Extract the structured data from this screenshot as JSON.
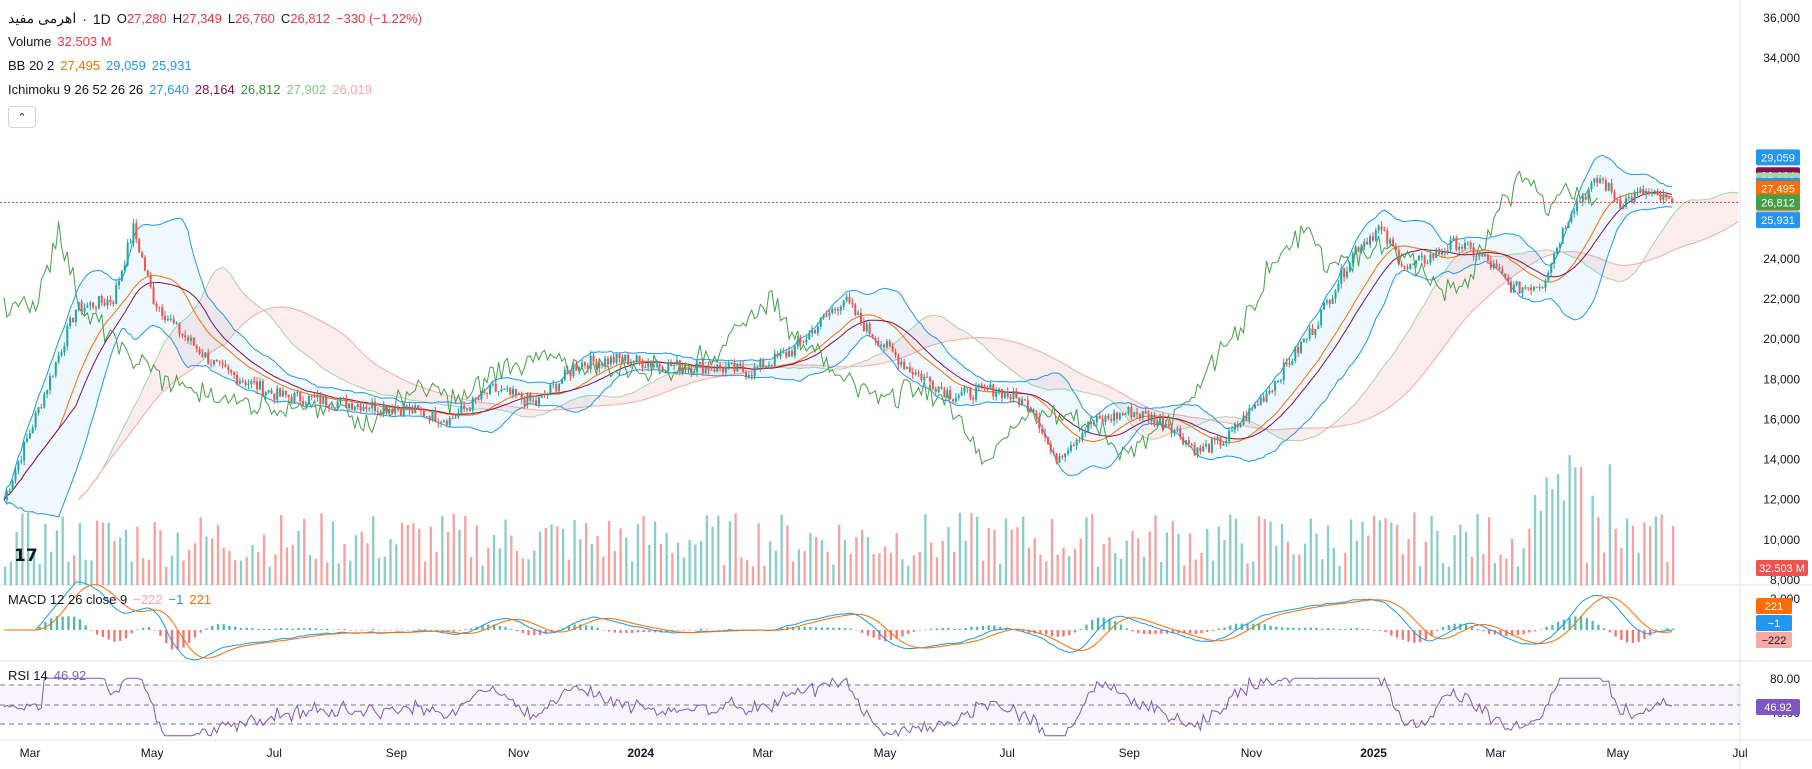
{
  "symbol": "اهرمی مفید",
  "interval": "1D",
  "ohlc": {
    "o_label": "O",
    "o": "27,280",
    "h_label": "H",
    "h": "27,349",
    "l_label": "L",
    "l": "26,760",
    "c_label": "C",
    "c": "26,812",
    "change": "−330 (−1.22%)"
  },
  "volume": {
    "label": "Volume",
    "value": "32.503 M",
    "tag": "32.503 M"
  },
  "bb": {
    "label": "BB 20 2",
    "basis": "27,495",
    "upper": "29,059",
    "lower": "25,931"
  },
  "ichimoku": {
    "label": "Ichimoku 9 26 52 26 26",
    "conversion": "27,640",
    "base": "28,164",
    "lagging": "26,812",
    "lead1": "27,902",
    "lead2": "26,019"
  },
  "macd": {
    "label": "MACD 12 26 close 9",
    "hist": "−222",
    "macd": "−1",
    "signal": "221"
  },
  "rsi": {
    "label": "RSI 14",
    "value": "46.92"
  },
  "colors": {
    "up": "#26a69a",
    "down": "#ef5350",
    "bb": "#2196f3",
    "ma_orange": "#ff6d00",
    "base_line": "#880e4f",
    "lagging": "#43a047",
    "rsi": "#7e57c2"
  },
  "chart_data": {
    "type": "candlestick",
    "price_axis": {
      "ticks": [
        "36,000",
        "34,000",
        "24,000",
        "22,000",
        "20,000",
        "18,000",
        "16,000",
        "14,000",
        "12,000",
        "10,000",
        "8,000"
      ],
      "ylim": [
        8000,
        36000
      ]
    },
    "price_tags": [
      {
        "value": "29,059",
        "color": "#2196f3"
      },
      {
        "value": "28,164",
        "color": "#880e4f"
      },
      {
        "value": "27,902",
        "color": "#a5d6a7"
      },
      {
        "value": "27,640",
        "color": "#2196f3"
      },
      {
        "value": "27,495",
        "color": "#ff6d00"
      },
      {
        "value": "26,812",
        "color": "#f23645"
      },
      {
        "value": "26,812",
        "color": "#43a047"
      },
      {
        "value": "26,019",
        "color": "#f7a9a7"
      },
      {
        "value": "25,931",
        "color": "#2196f3"
      }
    ],
    "macd_axis": {
      "ticks": [
        "2,000"
      ]
    },
    "macd_tags": [
      {
        "value": "221",
        "color": "#ff6d00"
      },
      {
        "value": "−1",
        "color": "#2196f3"
      },
      {
        "value": "−222",
        "color": "#f7a9a7"
      }
    ],
    "rsi_axis": {
      "ticks": [
        "80.00",
        "40.00"
      ]
    },
    "time_axis": [
      "Mar",
      "May",
      "Jul",
      "Sep",
      "Nov",
      "2024",
      "Mar",
      "May",
      "Jul",
      "Sep",
      "Nov",
      "2025",
      "Mar",
      "May",
      "Jul"
    ],
    "close_anchors": [
      [
        0,
        12000
      ],
      [
        12,
        16500
      ],
      [
        25,
        21500
      ],
      [
        38,
        22000
      ],
      [
        45,
        25500
      ],
      [
        52,
        22000
      ],
      [
        60,
        20500
      ],
      [
        75,
        18500
      ],
      [
        95,
        17200
      ],
      [
        120,
        16800
      ],
      [
        140,
        16500
      ],
      [
        155,
        16000
      ],
      [
        170,
        17500
      ],
      [
        185,
        16800
      ],
      [
        200,
        18800
      ],
      [
        215,
        19000
      ],
      [
        230,
        18700
      ],
      [
        245,
        18600
      ],
      [
        260,
        18400
      ],
      [
        275,
        19500
      ],
      [
        285,
        21000
      ],
      [
        292,
        22000
      ],
      [
        300,
        20500
      ],
      [
        315,
        18500
      ],
      [
        330,
        17200
      ],
      [
        345,
        17500
      ],
      [
        358,
        16600
      ],
      [
        365,
        14000
      ],
      [
        378,
        15800
      ],
      [
        392,
        16400
      ],
      [
        405,
        15800
      ],
      [
        415,
        14400
      ],
      [
        425,
        15000
      ],
      [
        440,
        17500
      ],
      [
        455,
        20500
      ],
      [
        470,
        24500
      ],
      [
        478,
        25500
      ],
      [
        488,
        23500
      ],
      [
        505,
        24800
      ],
      [
        515,
        24000
      ],
      [
        525,
        22500
      ],
      [
        535,
        22800
      ],
      [
        545,
        26500
      ],
      [
        555,
        28000
      ],
      [
        562,
        26800
      ],
      [
        570,
        27300
      ],
      [
        580,
        26812
      ]
    ],
    "total_bars": 580
  }
}
